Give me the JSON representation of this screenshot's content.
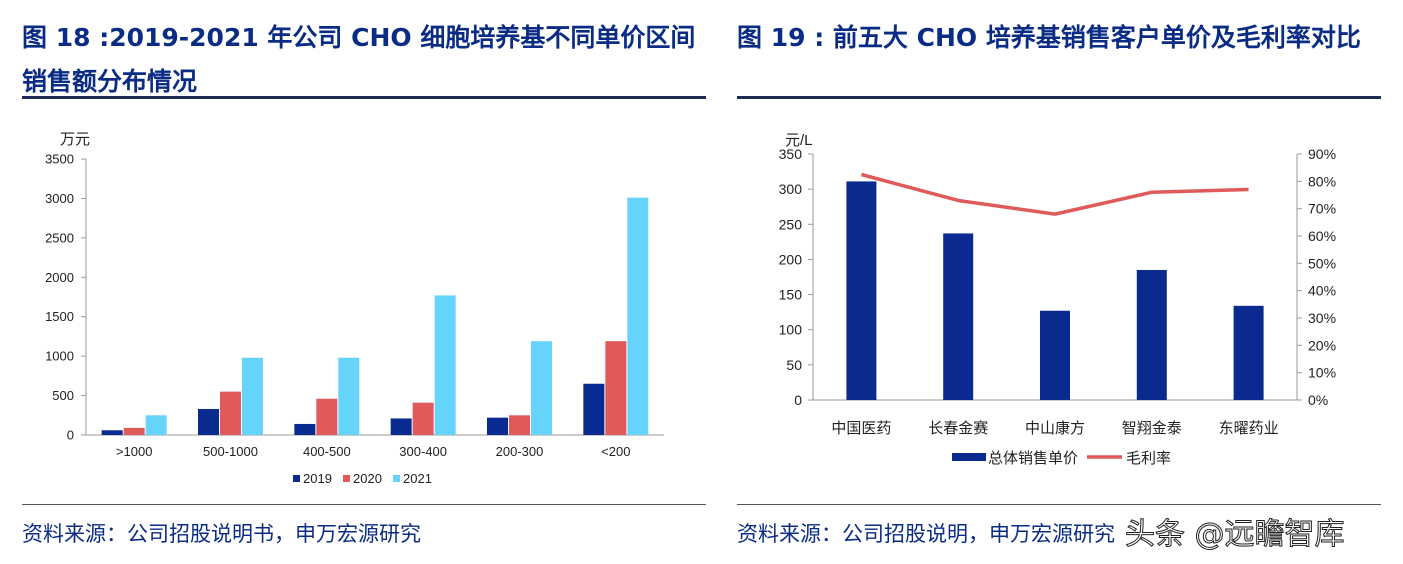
{
  "left": {
    "title": "图 18 :2019-2021 年公司 CHO 细胞培养基不同单价区间销售额分布情况",
    "source": "资料来源：公司招股说明书，申万宏源研究"
  },
  "right": {
    "title": "图 19 : 前五大 CHO 培养基销售客户单价及毛利率对比",
    "source": "资料来源：公司招股说明，申万宏源研究"
  },
  "watermark": "头条 @远瞻智库",
  "chart_data": [
    {
      "type": "bar",
      "ylabel": "万元",
      "ylim": [
        0,
        3500
      ],
      "yticks": [
        "0",
        "500",
        "1000",
        "1500",
        "2000",
        "2500",
        "3000",
        "3500"
      ],
      "categories": [
        ">1000",
        "500-1000",
        "400-500",
        "300-400",
        "200-300",
        "<200"
      ],
      "series": [
        {
          "name": "2019",
          "color": "#0a2a8f",
          "values": [
            60,
            330,
            140,
            210,
            220,
            650
          ]
        },
        {
          "name": "2020",
          "color": "#e05a5a",
          "values": [
            90,
            550,
            460,
            410,
            250,
            1190
          ]
        },
        {
          "name": "2021",
          "color": "#66d4fa",
          "values": [
            250,
            980,
            980,
            1770,
            1190,
            3010
          ]
        }
      ],
      "legend": "bottom"
    },
    {
      "type": "bar",
      "ylabel": "元/L",
      "ylim": [
        0,
        350
      ],
      "yticks": [
        "0",
        "50",
        "100",
        "150",
        "200",
        "250",
        "300",
        "350"
      ],
      "y2lim": [
        0,
        90
      ],
      "y2ticks": [
        "0%",
        "10%",
        "20%",
        "30%",
        "40%",
        "50%",
        "60%",
        "70%",
        "80%",
        "90%"
      ],
      "categories": [
        "中国医药",
        "长春金赛",
        "中山康方",
        "智翔金泰",
        "东曜药业"
      ],
      "series": [
        {
          "name": "总体销售单价",
          "type": "bar",
          "color": "#0a2a8f",
          "values": [
            311,
            237,
            127,
            185,
            134
          ]
        },
        {
          "name": "毛利率",
          "type": "line",
          "axis": "right",
          "color": "#e05a5a",
          "values": [
            82.5,
            73,
            68,
            76,
            77
          ]
        }
      ],
      "legend": "bottom"
    }
  ]
}
